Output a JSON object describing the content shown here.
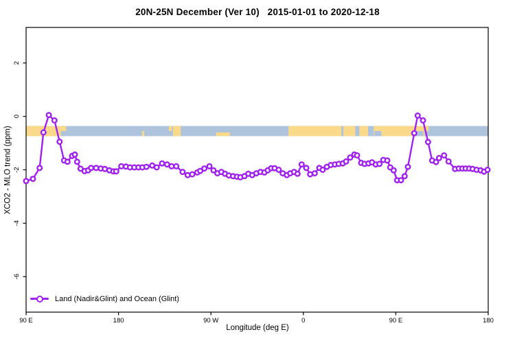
{
  "colors": {
    "line": "#A020F0",
    "marker_fill": "#FFFFFF",
    "ocean": "#AEC3DC",
    "land": "#FBD98A",
    "axis": "#000000",
    "background": "#FFFFFF"
  },
  "chart_data": {
    "type": "line",
    "title": "20N-25N December (Ver 10)   2015-01-01 to 2020-12-18",
    "xlabel": "Longitude (deg E)",
    "ylabel": "XCO2 - MLO trend (ppm)",
    "grid": false,
    "legend_position": "bottom-left",
    "x_axis": {
      "range": [
        90,
        540
      ],
      "note": "longitude unwrapped eastward from 90E across the dateline",
      "ticks": [
        {
          "pos": 90,
          "label": "90 E"
        },
        {
          "pos": 180,
          "label": "180"
        },
        {
          "pos": 270,
          "label": "90 W"
        },
        {
          "pos": 360,
          "label": "0"
        },
        {
          "pos": 450,
          "label": "90 E"
        },
        {
          "pos": 540,
          "label": "180"
        }
      ]
    },
    "y_axis": {
      "range": [
        -7.33,
        3.33
      ],
      "ticks": [
        2,
        0,
        -2,
        -4,
        -6
      ]
    },
    "map_strip": {
      "center_ppm": -0.55,
      "half_height_ppm": 0.19,
      "ocean_color": "#AEC3DC",
      "land_color": "#FBD98A",
      "land_segments": [
        {
          "from": 90,
          "to": 124,
          "part": "full"
        },
        {
          "from": 124,
          "to": 129,
          "part": "top"
        },
        {
          "from": 203,
          "to": 205,
          "part": "bottom"
        },
        {
          "from": 229,
          "to": 232,
          "part": "top"
        },
        {
          "from": 233,
          "to": 240.5,
          "part": "full"
        },
        {
          "from": 275,
          "to": 288.5,
          "part": "thin-bottom"
        },
        {
          "from": 345.5,
          "to": 397,
          "part": "full"
        },
        {
          "from": 399,
          "to": 410.5,
          "part": "full"
        },
        {
          "from": 414.5,
          "to": 423,
          "part": "full"
        },
        {
          "from": 428.5,
          "to": 478,
          "part": "full"
        },
        {
          "from": 478,
          "to": 482,
          "part": "top"
        }
      ],
      "ocean_notches": [
        {
          "from": 429,
          "to": 436,
          "part": "bottom"
        },
        {
          "from": 468,
          "to": 477,
          "part": "bottom"
        }
      ]
    },
    "series": [
      {
        "name": "Land (Nadir&Glint) and Ocean (Glint)",
        "color": "#A020F0",
        "marker": "open-circle",
        "points": [
          [
            90,
            -2.42
          ],
          [
            96.7,
            -2.34
          ],
          [
            103.2,
            -1.93
          ],
          [
            106.9,
            -0.6
          ],
          [
            112.1,
            0.05
          ],
          [
            117.6,
            -0.15
          ],
          [
            122.6,
            -0.95
          ],
          [
            127,
            -1.65
          ],
          [
            130.3,
            -1.7
          ],
          [
            134.8,
            -1.48
          ],
          [
            137.5,
            -1.43
          ],
          [
            139.7,
            -1.7
          ],
          [
            143,
            -1.96
          ],
          [
            147,
            -2.05
          ],
          [
            150.4,
            -2.02
          ],
          [
            153.3,
            -1.93
          ],
          [
            158.2,
            -1.93
          ],
          [
            162.7,
            -1.95
          ],
          [
            166.7,
            -1.97
          ],
          [
            171.1,
            -2.02
          ],
          [
            174.9,
            -2.06
          ],
          [
            177.8,
            -2.06
          ],
          [
            182.7,
            -1.87
          ],
          [
            187.2,
            -1.88
          ],
          [
            191.2,
            -1.91
          ],
          [
            195.4,
            -1.91
          ],
          [
            199.4,
            -1.91
          ],
          [
            203.2,
            -1.91
          ],
          [
            207.2,
            -1.89
          ],
          [
            212.8,
            -1.84
          ],
          [
            217.2,
            -1.91
          ],
          [
            222.4,
            -1.76
          ],
          [
            227.3,
            -1.8
          ],
          [
            231.7,
            -1.87
          ],
          [
            236.2,
            -1.87
          ],
          [
            242.4,
            -2.08
          ],
          [
            247.3,
            -2.2
          ],
          [
            251.8,
            -2.17
          ],
          [
            256.7,
            -2.1
          ],
          [
            259.6,
            -2.04
          ],
          [
            263.6,
            -1.95
          ],
          [
            268.5,
            -1.87
          ],
          [
            272.5,
            -2.02
          ],
          [
            276.3,
            -2.13
          ],
          [
            280.1,
            -2.08
          ],
          [
            283.7,
            -2.15
          ],
          [
            287.4,
            -2.21
          ],
          [
            291.5,
            -2.24
          ],
          [
            295.3,
            -2.26
          ],
          [
            298.6,
            -2.28
          ],
          [
            302.6,
            -2.24
          ],
          [
            306.4,
            -2.15
          ],
          [
            310.2,
            -2.2
          ],
          [
            314.2,
            -2.13
          ],
          [
            318.2,
            -2.08
          ],
          [
            322,
            -2.1
          ],
          [
            325.3,
            -2.02
          ],
          [
            328.7,
            -1.94
          ],
          [
            332,
            -1.94
          ],
          [
            336,
            -2.0
          ],
          [
            339.9,
            -2.13
          ],
          [
            343.9,
            -2.2
          ],
          [
            347.2,
            -2.13
          ],
          [
            351,
            -2.08
          ],
          [
            354.3,
            -2.15
          ],
          [
            358.3,
            -1.8
          ],
          [
            362.8,
            -1.93
          ],
          [
            366.6,
            -2.17
          ],
          [
            371,
            -2.13
          ],
          [
            375.5,
            -1.93
          ],
          [
            378.8,
            -2.0
          ],
          [
            382.9,
            -1.89
          ],
          [
            386.7,
            -1.82
          ],
          [
            390.7,
            -1.8
          ],
          [
            394.4,
            -1.78
          ],
          [
            398.4,
            -1.76
          ],
          [
            401.6,
            -1.69
          ],
          [
            405.6,
            -1.54
          ],
          [
            409.6,
            -1.43
          ],
          [
            412.3,
            -1.46
          ],
          [
            416.3,
            -1.74
          ],
          [
            419.6,
            -1.78
          ],
          [
            423.4,
            -1.76
          ],
          [
            426.8,
            -1.72
          ],
          [
            430.5,
            -1.8
          ],
          [
            434.1,
            -1.78
          ],
          [
            437.9,
            -1.63
          ],
          [
            441.7,
            -1.65
          ],
          [
            444.6,
            -1.91
          ],
          [
            447.9,
            -2.02
          ],
          [
            451.3,
            -2.39
          ],
          [
            455.1,
            -2.39
          ],
          [
            458.6,
            -2.24
          ],
          [
            461.8,
            -1.89
          ],
          [
            468,
            -0.63
          ],
          [
            471.3,
            0.03
          ],
          [
            476.5,
            -0.15
          ],
          [
            481.4,
            -0.96
          ],
          [
            485.4,
            -1.65
          ],
          [
            489.2,
            -1.71
          ],
          [
            492.1,
            -1.56
          ],
          [
            497,
            -1.46
          ],
          [
            501.4,
            -1.69
          ],
          [
            507.7,
            -1.97
          ],
          [
            511.4,
            -1.95
          ],
          [
            514.8,
            -1.95
          ],
          [
            518.1,
            -1.95
          ],
          [
            521.5,
            -1.95
          ],
          [
            524.8,
            -1.97
          ],
          [
            528.6,
            -2.0
          ],
          [
            532.6,
            -2.02
          ],
          [
            535.9,
            -2.07
          ],
          [
            539.3,
            -2.0
          ]
        ]
      }
    ]
  }
}
